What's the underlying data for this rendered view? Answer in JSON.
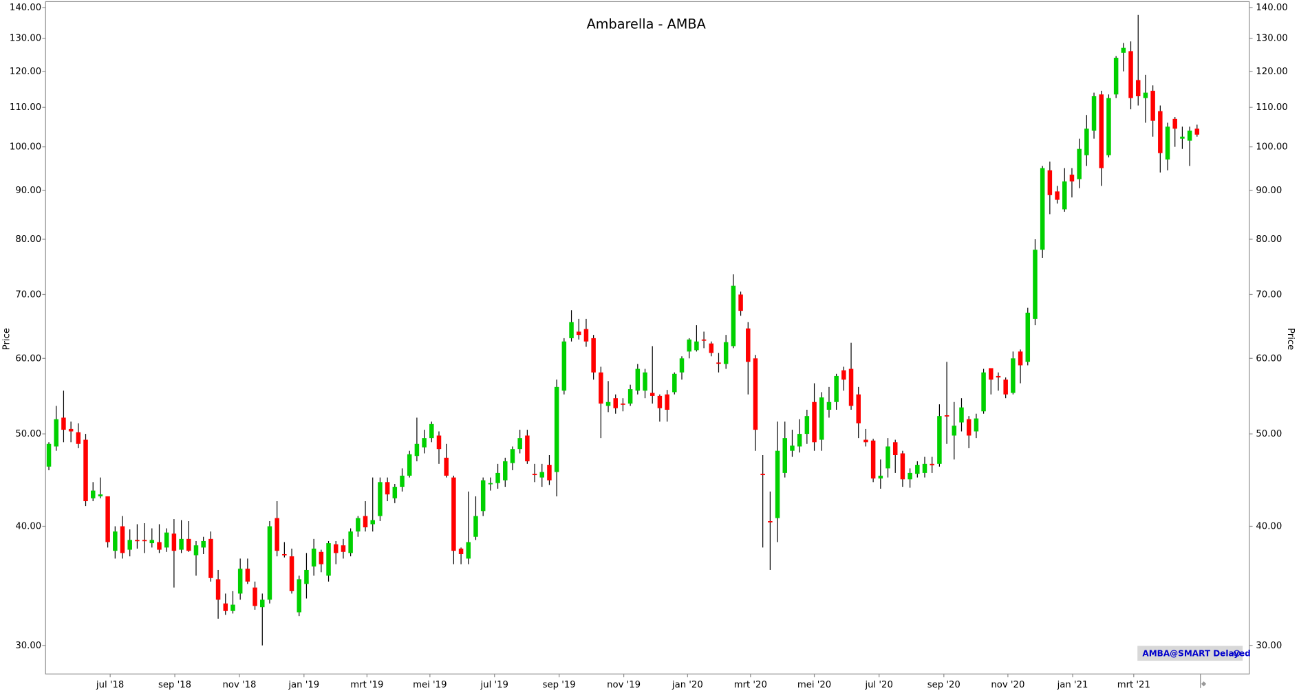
{
  "chart_data": {
    "type": "candlestick",
    "title": "Ambarella - AMBA",
    "y_label": "Price",
    "badge": "AMBA@SMART Delayed",
    "log_scale": true,
    "up_color": "#00d000",
    "down_color": "#ff0000",
    "wick_color": "#000000",
    "ylim": [
      28,
      142
    ],
    "yticks": [
      {
        "value": 30,
        "label": "30.00"
      },
      {
        "value": 40,
        "label": "40.00"
      },
      {
        "value": 50,
        "label": "50.00"
      },
      {
        "value": 60,
        "label": "60.00"
      },
      {
        "value": 70,
        "label": "70.00"
      },
      {
        "value": 80,
        "label": "80.00"
      },
      {
        "value": 90,
        "label": "90.00"
      },
      {
        "value": 100,
        "label": "100.00"
      },
      {
        "value": 110,
        "label": "110.00"
      },
      {
        "value": 120,
        "label": "120.00"
      },
      {
        "value": 130,
        "label": "130.00"
      },
      {
        "value": 140,
        "label": "140.00"
      }
    ],
    "xlim": [
      -0.45,
      163.1
    ],
    "xticks": [
      {
        "value": 8.33,
        "label": "jul '18"
      },
      {
        "value": 17.11,
        "label": "sep '18"
      },
      {
        "value": 25.89,
        "label": "nov '18"
      },
      {
        "value": 34.66,
        "label": "jan '19"
      },
      {
        "value": 43.22,
        "label": "mrt '19"
      },
      {
        "value": 51.77,
        "label": "mei '19"
      },
      {
        "value": 60.55,
        "label": "jul '19"
      },
      {
        "value": 69.33,
        "label": "sep '19"
      },
      {
        "value": 78.11,
        "label": "nov '19"
      },
      {
        "value": 86.78,
        "label": "jan '20"
      },
      {
        "value": 95.33,
        "label": "mrt '20"
      },
      {
        "value": 104.0,
        "label": "mei '20"
      },
      {
        "value": 112.8,
        "label": "jul '20"
      },
      {
        "value": 121.6,
        "label": "sep '20"
      },
      {
        "value": 130.3,
        "label": "nov '20"
      },
      {
        "value": 139.1,
        "label": "jan '21"
      },
      {
        "value": 147.4,
        "label": "mrt '21"
      }
    ],
    "open": [
      46.2,
      48.5,
      52,
      50.6,
      50.2,
      49.3,
      42.8,
      43,
      43,
      37.7,
      40,
      37.8,
      38.7,
      38.7,
      38.4,
      38.5,
      38,
      39.3,
      37.8,
      38.8,
      37.3,
      38,
      38.8,
      35.2,
      33.2,
      32.6,
      34,
      36.1,
      34.5,
      32.9,
      33.5,
      40.8,
      37.4,
      37.2,
      32.5,
      34.8,
      36.3,
      37.6,
      35.5,
      38.3,
      38.2,
      37.5,
      39.5,
      41,
      40.2,
      41,
      44.5,
      42.8,
      44,
      45.2,
      47.4,
      48.4,
      49.5,
      49.8,
      47.2,
      45,
      37.9,
      37,
      39,
      41.5,
      44.3,
      44.4,
      44.7,
      46.6,
      48.2,
      49.8,
      45.4,
      45,
      46.4,
      45.6,
      55.5,
      63,
      64,
      64.4,
      63,
      58,
      53.5,
      54.5,
      53.8,
      53.8,
      55.5,
      55.5,
      55.2,
      54.8,
      55,
      55.3,
      58,
      61,
      61.2,
      62.8,
      62.2,
      59.4,
      59.2,
      61.8,
      70,
      64.5,
      60,
      45.4,
      40.5,
      40.8,
      45.5,
      48,
      48.5,
      50,
      54,
      49.3,
      53,
      54,
      58.3,
      58.5,
      55,
      49.3,
      49.2,
      44.9,
      46,
      49,
      47.7,
      44.8,
      45.4,
      45.5,
      46.5,
      46.5,
      52.3,
      49.8,
      51.4,
      51.8,
      50.3,
      52.8,
      58.6,
      57.5,
      57,
      55.2,
      61,
      59.5,
      66,
      78,
      94.5,
      89.8,
      86,
      93.5,
      92.5,
      98,
      104,
      113.5,
      98,
      113.5,
      125.5,
      126,
      117.5,
      112.5,
      114.5,
      109,
      97,
      107,
      102,
      101.5,
      104.5
    ],
    "high": [
      49,
      53.5,
      55.5,
      51.5,
      51.3,
      50,
      44.5,
      45,
      43,
      40,
      41,
      39.7,
      40.2,
      40.3,
      39.8,
      40.2,
      39.8,
      40.7,
      40.6,
      40.5,
      38.6,
      39,
      39.5,
      36,
      34,
      34.2,
      37,
      37,
      35,
      34,
      40.5,
      42.5,
      38.5,
      37.9,
      35.5,
      37.5,
      38.8,
      37.8,
      38.6,
      38.6,
      38.8,
      39.8,
      41,
      42.5,
      45,
      45,
      45,
      44.3,
      46,
      48,
      52,
      50.5,
      51.5,
      50.3,
      48.8,
      45.2,
      38,
      43.5,
      43,
      45,
      45,
      46.5,
      47.2,
      48.5,
      50.5,
      50.5,
      46.5,
      46.5,
      47.5,
      57,
      63,
      67.4,
      66,
      66,
      63.5,
      58.8,
      56.8,
      55,
      54.5,
      56.3,
      59.2,
      58.5,
      61.8,
      55,
      55.6,
      58,
      60.3,
      63,
      65,
      64,
      62.5,
      60.8,
      63.5,
      73.5,
      70.5,
      65.5,
      60.5,
      47.5,
      43.5,
      51.5,
      51.5,
      50.5,
      51.8,
      53,
      56.5,
      55.3,
      56,
      57.8,
      58.8,
      62.3,
      56,
      50.6,
      49.4,
      47,
      49.5,
      49.3,
      48,
      46,
      46.8,
      47.3,
      47.3,
      53.7,
      59.5,
      54,
      54.5,
      52.2,
      52.5,
      58.5,
      58.6,
      58,
      57.3,
      61,
      61.3,
      67.8,
      80,
      95.5,
      96.5,
      91,
      95,
      95,
      102,
      108,
      114,
      114.5,
      113.5,
      124.5,
      128.5,
      129,
      137.5,
      119,
      116,
      110.5,
      106,
      107.5,
      105,
      105,
      105.5
    ],
    "low": [
      45.8,
      48,
      49,
      49,
      48.3,
      42,
      42.5,
      42.8,
      38,
      37,
      37,
      37.2,
      37.9,
      37.5,
      38,
      37.5,
      37.6,
      34.5,
      37.5,
      37.6,
      35.5,
      37.4,
      35,
      32,
      32.3,
      32.4,
      33.5,
      34.8,
      32.7,
      30,
      33.2,
      37.2,
      37.1,
      34,
      32.2,
      33.6,
      35.5,
      35.8,
      35,
      36.5,
      37,
      37.2,
      39,
      39.5,
      39.5,
      40.5,
      42.5,
      42.3,
      43.5,
      45,
      46.8,
      47.7,
      49,
      46.5,
      45,
      36.5,
      36.5,
      36.5,
      38.7,
      41,
      43.6,
      43.8,
      44,
      45.8,
      47.7,
      46.5,
      44.5,
      44,
      44.2,
      43,
      55,
      62.5,
      62.8,
      61.7,
      57,
      49.5,
      52.7,
      52.5,
      52.8,
      53.5,
      55,
      54.5,
      53.8,
      51.5,
      51.5,
      55,
      57,
      60,
      61,
      61.5,
      60.3,
      58,
      58.5,
      61.5,
      66.5,
      55,
      48,
      38,
      36,
      38.5,
      45,
      47.3,
      47.8,
      48.8,
      48,
      48,
      52,
      53,
      55.5,
      53,
      49.5,
      48.5,
      44.5,
      43.8,
      45,
      45.5,
      44,
      43.9,
      45,
      45,
      45.5,
      46.2,
      48.8,
      47,
      50.3,
      48.3,
      49.5,
      52.5,
      55,
      55.5,
      54.5,
      55,
      56.5,
      59,
      65,
      76.5,
      85,
      87.2,
      85.5,
      88.5,
      90.5,
      95.5,
      102,
      91,
      97.5,
      112.5,
      120,
      109.5,
      110.5,
      106,
      102.5,
      94,
      94.5,
      100,
      99.5,
      95.5,
      102.5
    ],
    "close": [
      48.8,
      51.8,
      50.5,
      50.3,
      48.8,
      42.5,
      43.6,
      43.2,
      38.5,
      39.5,
      37.5,
      38.7,
      38.6,
      38.6,
      38.7,
      37.8,
      39.4,
      37.7,
      38.8,
      37.7,
      38.2,
      38.6,
      35.3,
      33.5,
      32.6,
      33.1,
      36.1,
      35,
      33,
      33.5,
      40,
      37.7,
      37.3,
      34.2,
      35.2,
      36,
      37.9,
      36.5,
      38.4,
      37.5,
      37.6,
      39.5,
      40.8,
      39.9,
      40.6,
      44.5,
      43.2,
      44,
      45.2,
      47.6,
      48.8,
      49.5,
      51.2,
      48.2,
      45.2,
      37.7,
      37.4,
      38.5,
      41,
      44.7,
      44.4,
      45.5,
      46.8,
      48.2,
      49.5,
      46.8,
      45.3,
      45.6,
      44.7,
      56,
      62.5,
      65.5,
      63.5,
      62.5,
      58,
      53.8,
      54,
      53.2,
      53.7,
      55.7,
      58.5,
      58,
      54.8,
      53.2,
      53,
      57.8,
      60,
      62.8,
      62.5,
      62.7,
      60.8,
      59.3,
      62.4,
      71.5,
      67.3,
      59.5,
      50.5,
      45.3,
      40.4,
      48,
      49.5,
      48.6,
      50,
      52.2,
      49,
      54.6,
      54,
      57.5,
      57,
      53.5,
      51.3,
      49,
      44.9,
      45.2,
      48.5,
      47.5,
      44.8,
      45.5,
      46.4,
      46.5,
      46.4,
      52.2,
      52.2,
      51,
      53.3,
      49.8,
      51.9,
      58,
      57,
      57.3,
      55,
      60,
      59,
      67,
      78,
      95,
      89,
      88,
      92,
      92,
      99.5,
      104.5,
      113,
      95,
      112.5,
      124,
      127,
      112.5,
      113,
      114,
      106.5,
      98.5,
      105,
      104.5,
      102.5,
      104,
      103
    ]
  }
}
